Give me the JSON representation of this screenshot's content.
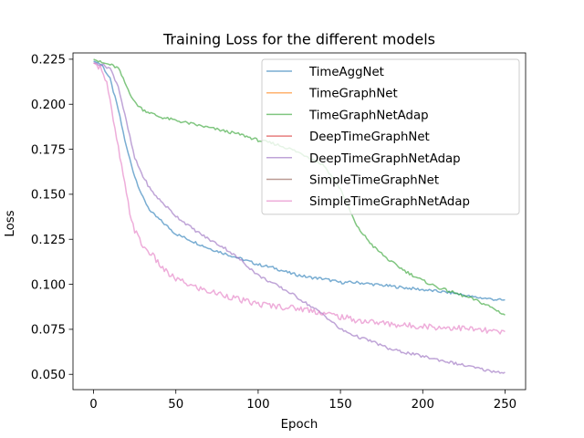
{
  "chart_data": {
    "type": "line",
    "title": "Training Loss for the different models",
    "xlabel": "Epoch",
    "ylabel": "Loss",
    "xlim": [
      -12.5,
      262.5
    ],
    "ylim": [
      0.0415,
      0.2285
    ],
    "xticks": [
      0,
      50,
      100,
      150,
      200,
      250
    ],
    "yticks": [
      0.05,
      0.075,
      0.1,
      0.125,
      0.15,
      0.175,
      0.2,
      0.225
    ],
    "ytick_labels": [
      "0.050",
      "0.075",
      "0.100",
      "0.125",
      "0.150",
      "0.175",
      "0.200",
      "0.225"
    ],
    "grid": false,
    "legend_position": "upper right",
    "series": [
      {
        "name": "TimeAggNet",
        "color": "#1f77b4",
        "visible": true,
        "x": [
          0,
          5,
          10,
          15,
          20,
          25,
          30,
          35,
          40,
          45,
          50,
          60,
          70,
          80,
          90,
          100,
          110,
          120,
          130,
          140,
          150,
          160,
          170,
          180,
          190,
          200,
          210,
          220,
          230,
          240,
          250
        ],
        "y": [
          0.224,
          0.222,
          0.214,
          0.197,
          0.176,
          0.16,
          0.148,
          0.14,
          0.136,
          0.132,
          0.128,
          0.124,
          0.12,
          0.117,
          0.114,
          0.111,
          0.109,
          0.106,
          0.104,
          0.103,
          0.101,
          0.101,
          0.1,
          0.099,
          0.098,
          0.097,
          0.096,
          0.095,
          0.093,
          0.092,
          0.091
        ]
      },
      {
        "name": "TimeGraphNet",
        "color": "#ff7f0e",
        "visible": false,
        "x": [],
        "y": []
      },
      {
        "name": "TimeGraphNetAdap",
        "color": "#2ca02c",
        "visible": true,
        "x": [
          0,
          5,
          10,
          15,
          20,
          25,
          30,
          40,
          50,
          60,
          70,
          80,
          90,
          100,
          110,
          120,
          130,
          140,
          150,
          160,
          170,
          180,
          190,
          200,
          210,
          220,
          230,
          240,
          250
        ],
        "y": [
          0.225,
          0.223,
          0.222,
          0.22,
          0.21,
          0.201,
          0.197,
          0.193,
          0.191,
          0.189,
          0.187,
          0.185,
          0.183,
          0.18,
          0.178,
          0.175,
          0.171,
          0.166,
          0.153,
          0.132,
          0.121,
          0.113,
          0.107,
          0.102,
          0.098,
          0.095,
          0.092,
          0.088,
          0.083
        ]
      },
      {
        "name": "DeepTimeGraphNet",
        "color": "#d62728",
        "visible": false,
        "x": [],
        "y": []
      },
      {
        "name": "DeepTimeGraphNetAdap",
        "color": "#9467bd",
        "visible": true,
        "x": [
          0,
          5,
          10,
          15,
          20,
          25,
          30,
          35,
          40,
          50,
          60,
          70,
          80,
          90,
          100,
          110,
          120,
          130,
          140,
          150,
          160,
          170,
          180,
          190,
          200,
          210,
          220,
          230,
          240,
          250
        ],
        "y": [
          0.223,
          0.222,
          0.22,
          0.21,
          0.19,
          0.17,
          0.16,
          0.152,
          0.147,
          0.138,
          0.131,
          0.125,
          0.12,
          0.113,
          0.105,
          0.1,
          0.095,
          0.089,
          0.083,
          0.075,
          0.071,
          0.068,
          0.064,
          0.062,
          0.06,
          0.058,
          0.056,
          0.054,
          0.052,
          0.051
        ]
      },
      {
        "name": "SimpleTimeGraphNet",
        "color": "#8c564b",
        "visible": false,
        "x": [],
        "y": []
      },
      {
        "name": "SimpleTimeGraphNetAdap",
        "color": "#e377c2",
        "visible": true,
        "x": [
          0,
          5,
          8,
          10,
          12,
          15,
          18,
          20,
          22,
          25,
          30,
          35,
          40,
          45,
          50,
          60,
          70,
          80,
          90,
          100,
          110,
          120,
          130,
          140,
          150,
          160,
          170,
          180,
          190,
          200,
          210,
          220,
          230,
          240,
          250
        ],
        "y": [
          0.223,
          0.22,
          0.212,
          0.202,
          0.19,
          0.176,
          0.16,
          0.15,
          0.14,
          0.13,
          0.121,
          0.117,
          0.111,
          0.106,
          0.103,
          0.099,
          0.096,
          0.094,
          0.091,
          0.089,
          0.088,
          0.087,
          0.086,
          0.084,
          0.082,
          0.08,
          0.079,
          0.078,
          0.077,
          0.077,
          0.076,
          0.076,
          0.075,
          0.074,
          0.073
        ]
      }
    ]
  }
}
